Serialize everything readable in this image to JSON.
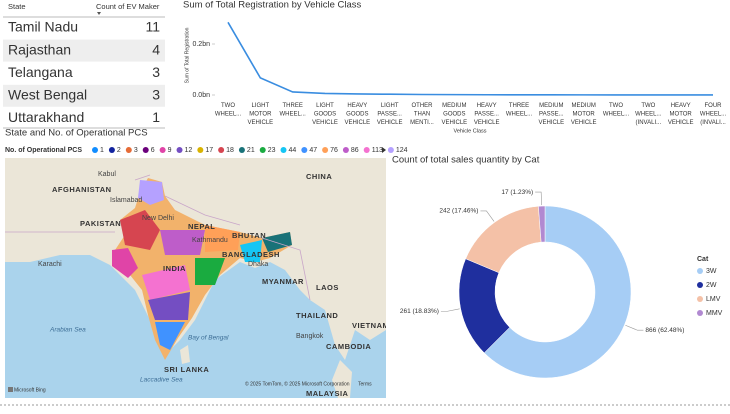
{
  "table": {
    "headers": [
      "State",
      "Count of EV Maker"
    ],
    "rows": [
      [
        "Tamil Nadu",
        11
      ],
      [
        "Rajasthan",
        4
      ],
      [
        "Telangana",
        3
      ],
      [
        "West Bengal",
        3
      ],
      [
        "Uttarakhand",
        1
      ]
    ]
  },
  "map": {
    "title": "State and No. of Operational PCS",
    "legend_title": "No. of Operational PCS",
    "legend": [
      {
        "value": 1,
        "color": "#118dff"
      },
      {
        "value": 2,
        "color": "#12239e"
      },
      {
        "value": 3,
        "color": "#e66c37"
      },
      {
        "value": 6,
        "color": "#6b007b"
      },
      {
        "value": 9,
        "color": "#e044a7"
      },
      {
        "value": 12,
        "color": "#744ec2"
      },
      {
        "value": 17,
        "color": "#d9b300"
      },
      {
        "value": 18,
        "color": "#d64550"
      },
      {
        "value": 21,
        "color": "#197278"
      },
      {
        "value": 23,
        "color": "#1aab40"
      },
      {
        "value": 44,
        "color": "#15c6f4"
      },
      {
        "value": 47,
        "color": "#4092ff"
      },
      {
        "value": 76,
        "color": "#ffa058"
      },
      {
        "value": 86,
        "color": "#be5dc9"
      },
      {
        "value": 113,
        "color": "#f472d0"
      },
      {
        "value": 124,
        "color": "#b5a1ff"
      }
    ],
    "places": [
      "Kabul",
      "AFGHANISTAN",
      "Islamabad",
      "PAKISTAN",
      "New Delhi",
      "NEPAL",
      "Kathmandu",
      "BHUTAN",
      "CHINA",
      "BANGLADESH",
      "Dhaka",
      "INDIA",
      "Karachi",
      "MYANMAR",
      "LAOS",
      "THAILAND",
      "Bangkok",
      "VIETNAM",
      "CAMBODIA",
      "Arabian Sea",
      "Bay of Bengal",
      "SRI LANKA",
      "Laccadive Sea",
      "MALAYSIA"
    ],
    "attribution": "© 2025 TomTom, © 2025 Microsoft Corporation",
    "terms": "Terms",
    "brand": "Microsoft Bing"
  },
  "chart_data": [
    {
      "type": "line",
      "title": "Sum of Total Registration by Vehicle Class",
      "x_label": "Vehicle Class",
      "y_label": "Sum of Total Registration",
      "categories": [
        "TWO WHEEL...",
        "LIGHT MOTOR VEHICLE",
        "THREE WHEEL...",
        "LIGHT GOODS VEHICLE",
        "HEAVY GOODS VEHICLE",
        "LIGHT PASSE... VEHICLE",
        "OTHER THAN MENTI...",
        "MEDIUM GOODS VEHICLE",
        "HEAVY PASSE... VEHICLE",
        "THREE WHEEL...",
        "MEDIUM PASSE... VEHICLE",
        "MEDIUM MOTOR VEHICLE",
        "TWO WHEEL...",
        "TWO WHEEL... (INVALI...",
        "HEAVY MOTOR VEHICLE",
        "FOUR WHEEL... (INVALI..."
      ],
      "values": [
        285000000,
        67000000,
        12000000,
        6000000,
        4000000,
        3000000,
        2000000,
        1500000,
        1000000,
        800000,
        600000,
        500000,
        400000,
        300000,
        200000,
        100000
      ],
      "color": "#3a8de0",
      "ylim": [
        0,
        310000000
      ],
      "yticks": [
        {
          "value": 0,
          "label": "0.0bn"
        },
        {
          "value": 200000000,
          "label": "0.2bn"
        }
      ]
    },
    {
      "type": "donut",
      "title": "Count of total sales quantity by Cat",
      "legend_title": "Cat",
      "categories": [
        "3W",
        "2W",
        "LMV",
        "MMV"
      ],
      "values": [
        866,
        261,
        242,
        17
      ],
      "value_labels": [
        "866 (62.48%)",
        "261 (18.83%)",
        "242 (17.46%)",
        "17 (1.23%)"
      ],
      "colors": [
        "#a6cdf5",
        "#1f2f9e",
        "#f4c1a7",
        "#b189d1"
      ]
    }
  ]
}
